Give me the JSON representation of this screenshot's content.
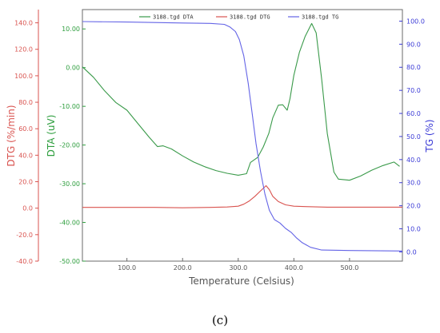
{
  "chart_data": {
    "type": "line",
    "x_axis": {
      "label": "Temperature (Celsius)",
      "range": [
        20,
        595
      ],
      "ticks": [
        100,
        200,
        300,
        400,
        500
      ],
      "tick_labels": [
        "100.0",
        "200.0",
        "300.0",
        "400.0",
        "500.0"
      ]
    },
    "axes": {
      "dtg": {
        "label": "DTG (%/min)",
        "range": [
          -40,
          150
        ],
        "ticks": [
          140,
          120,
          100,
          80,
          60,
          40,
          20,
          0,
          -20,
          -40
        ],
        "tick_labels": [
          "140.0",
          "120.0",
          "100.0",
          "80.0",
          "60.0",
          "40.0",
          "20.0",
          "0.0",
          "-20.0",
          "-40.0"
        ],
        "color": "#d9534f"
      },
      "dta": {
        "label": "DTA (uV)",
        "range": [
          -50,
          15
        ],
        "ticks": [
          10,
          0,
          -10,
          -20,
          -30,
          -40,
          -50
        ],
        "tick_labels": [
          "10.00",
          "0.00",
          "-10.00",
          "-20.00",
          "-30.00",
          "-40.00",
          "-50.00"
        ],
        "color": "#2e9e3e"
      },
      "tg": {
        "label": "TG (%)",
        "range": [
          -4,
          105
        ],
        "ticks": [
          100,
          90,
          80,
          70,
          60,
          50,
          40,
          30,
          20,
          10,
          0
        ],
        "tick_labels": [
          "100.0",
          "90.0",
          "80.0",
          "70.0",
          "60.0",
          "50.0",
          "40.0",
          "30.0",
          "20.0",
          "10.0",
          "0.0"
        ],
        "color": "#3a3ad6"
      }
    },
    "grid": false,
    "legend_position": "top",
    "series": [
      {
        "name": "3188.tgd DTA",
        "axis": "dta",
        "color": "#3a9a4a",
        "points": [
          [
            20,
            0.2
          ],
          [
            40,
            -2.5
          ],
          [
            60,
            -6
          ],
          [
            80,
            -9
          ],
          [
            100,
            -11
          ],
          [
            120,
            -14.5
          ],
          [
            140,
            -18
          ],
          [
            155,
            -20.4
          ],
          [
            165,
            -20.2
          ],
          [
            180,
            -21
          ],
          [
            200,
            -22.8
          ],
          [
            220,
            -24.4
          ],
          [
            240,
            -25.6
          ],
          [
            260,
            -26.6
          ],
          [
            280,
            -27.3
          ],
          [
            300,
            -27.8
          ],
          [
            315,
            -27.4
          ],
          [
            322,
            -24.5
          ],
          [
            335,
            -23.2
          ],
          [
            345,
            -20.5
          ],
          [
            355,
            -17
          ],
          [
            362,
            -13
          ],
          [
            372,
            -9.7
          ],
          [
            380,
            -9.6
          ],
          [
            388,
            -11
          ],
          [
            393,
            -8
          ],
          [
            400,
            -2
          ],
          [
            410,
            4
          ],
          [
            420,
            8
          ],
          [
            432,
            11.4
          ],
          [
            440,
            9
          ],
          [
            450,
            -3
          ],
          [
            460,
            -17
          ],
          [
            472,
            -27
          ],
          [
            480,
            -28.8
          ],
          [
            500,
            -29.1
          ],
          [
            520,
            -28
          ],
          [
            540,
            -26.5
          ],
          [
            560,
            -25.3
          ],
          [
            580,
            -24.4
          ],
          [
            590,
            -25.5
          ]
        ]
      },
      {
        "name": "3188.tgd DTG",
        "axis": "dtg",
        "color": "#d9534f",
        "points": [
          [
            20,
            0.6
          ],
          [
            100,
            0.6
          ],
          [
            150,
            0.6
          ],
          [
            200,
            0.3
          ],
          [
            250,
            0.6
          ],
          [
            280,
            0.9
          ],
          [
            300,
            1.5
          ],
          [
            310,
            3
          ],
          [
            320,
            5.5
          ],
          [
            330,
            9
          ],
          [
            340,
            13
          ],
          [
            350,
            17
          ],
          [
            356,
            14
          ],
          [
            362,
            9
          ],
          [
            372,
            5
          ],
          [
            385,
            2.5
          ],
          [
            400,
            1.5
          ],
          [
            420,
            1.2
          ],
          [
            460,
            0.8
          ],
          [
            595,
            0.8
          ]
        ]
      },
      {
        "name": "3188.tgd TG",
        "axis": "tg",
        "color": "#6464e6",
        "points": [
          [
            20,
            99.8
          ],
          [
            100,
            99.6
          ],
          [
            200,
            99.2
          ],
          [
            250,
            99
          ],
          [
            275,
            98.6
          ],
          [
            285,
            97.5
          ],
          [
            295,
            95.5
          ],
          [
            302,
            92
          ],
          [
            310,
            85
          ],
          [
            318,
            73
          ],
          [
            325,
            60
          ],
          [
            332,
            47
          ],
          [
            340,
            35
          ],
          [
            348,
            25
          ],
          [
            356,
            18
          ],
          [
            365,
            14
          ],
          [
            375,
            12.5
          ],
          [
            385,
            10.2
          ],
          [
            395,
            8.5
          ],
          [
            405,
            6
          ],
          [
            415,
            4
          ],
          [
            430,
            2
          ],
          [
            450,
            0.8
          ],
          [
            500,
            0.6
          ],
          [
            595,
            0.4
          ]
        ]
      }
    ]
  },
  "caption": "(c)"
}
